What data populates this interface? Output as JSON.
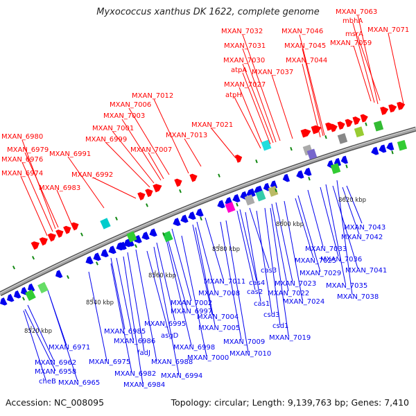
{
  "title": "Myxococcus xanthus DK 1622, complete genome",
  "footer": {
    "accession": "Accession: NC_008095",
    "topology": "Topology: circular; Length: 9,139,763 bp; Genes: 7,410"
  },
  "colors": {
    "forward": "#ff0000",
    "reverse": "#0000ee",
    "axis": "#888888"
  },
  "scale_ticks": [
    "8520 kbp",
    "8540 kbp",
    "8560 kbp",
    "8580 kbp",
    "8600 kbp",
    "8620 kbp"
  ],
  "forward_genes": [
    "MXAN_7063",
    "mbhA",
    "msrA",
    "MXAN_7071",
    "MXAN_7059",
    "MXAN_7032",
    "MXAN_7046",
    "MXAN_7031",
    "MXAN_7045",
    "MXAN_7030",
    "MXAN_7044",
    "atpA",
    "MXAN_7037",
    "MXAN_7027",
    "atpH",
    "MXAN_7012",
    "MXAN_7006",
    "MXAN_7003",
    "MXAN_7021",
    "MXAN_7001",
    "MXAN_7013",
    "MXAN_6999",
    "MXAN_6980",
    "MXAN_6979",
    "MXAN_6976",
    "MXAN_6991",
    "MXAN_7007",
    "MXAN_6974",
    "MXAN_6992",
    "MXAN_6983"
  ],
  "reverse_genes": [
    "MXAN_7043",
    "MXAN_7042",
    "MXAN_7033",
    "MXAN_7036",
    "MXAN_7025",
    "cas3",
    "MXAN_7029",
    "MXAN_7041",
    "cas4",
    "MXAN_7035",
    "MXAN_7011",
    "cas2",
    "MXAN_7023",
    "MXAN_7022",
    "MXAN_7038",
    "MXAN_7008",
    "cas1",
    "MXAN_7024",
    "MXAN_7002",
    "MXAN_6997",
    "csd3",
    "MXAN_7004",
    "MXAN_6995",
    "csd1",
    "MXAN_7005",
    "MXAN_6985",
    "asgD",
    "MXAN_7019",
    "MXAN_7009",
    "MXAN_6986",
    "MXAN_6998",
    "MXAN_6971",
    "fadJ",
    "MXAN_7010",
    "MXAN_6988",
    "MXAN_7000",
    "MXAN_6975",
    "MXAN_6962",
    "MXAN_6958",
    "MXAN_6982",
    "MXAN_6994",
    "cheB",
    "MXAN_6965",
    "MXAN_6984"
  ]
}
